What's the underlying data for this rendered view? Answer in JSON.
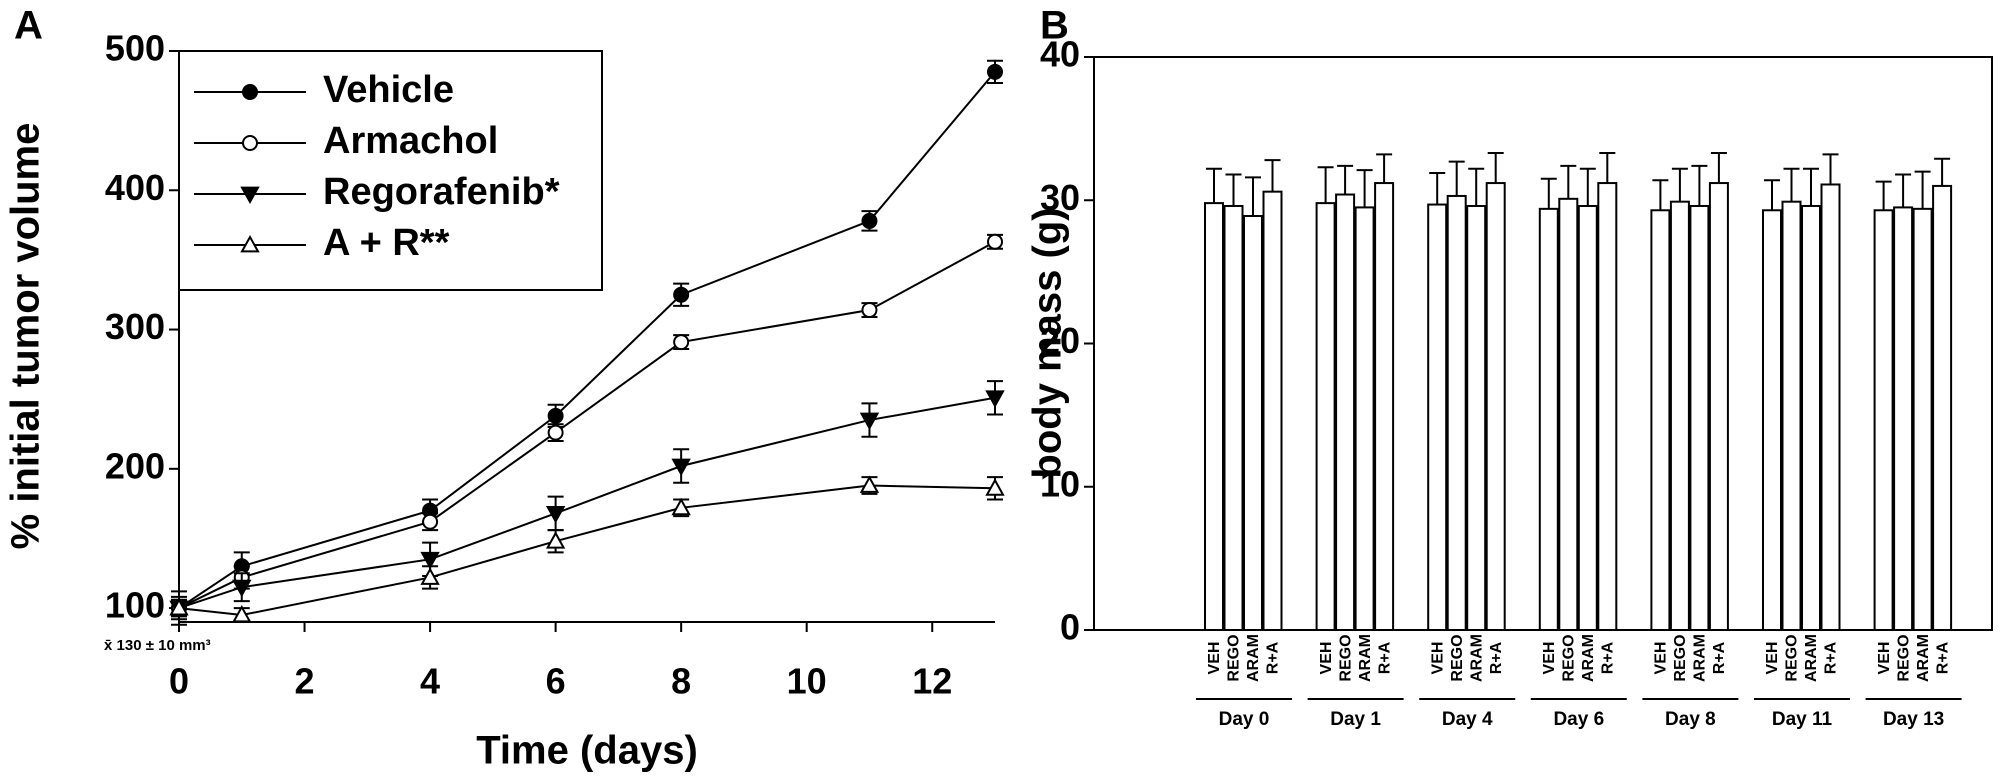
{
  "chart_data": [
    {
      "type": "line",
      "panel": "A",
      "xlabel": "Time (days)",
      "ylabel": "% initial tumor volume",
      "annotation": "x̄ 130 ± 10 mm³",
      "x": [
        0,
        1,
        4,
        6,
        8,
        11,
        13
      ],
      "xlim": [
        0,
        13
      ],
      "xticks": [
        0,
        2,
        4,
        6,
        8,
        10,
        12
      ],
      "ylim": [
        90,
        500
      ],
      "yticks": [
        100,
        200,
        300,
        400,
        500
      ],
      "series": [
        {
          "name": "Vehicle",
          "color": "#000000",
          "marker": "circle-filled",
          "values": [
            100,
            130,
            170,
            238,
            325,
            378,
            485
          ],
          "errors": [
            6,
            10,
            8,
            8,
            8,
            7,
            8
          ]
        },
        {
          "name": "Armachol",
          "color": "#000000",
          "marker": "circle-open",
          "values": [
            100,
            122,
            162,
            226,
            291,
            314,
            363
          ],
          "errors": [
            5,
            8,
            6,
            6,
            5,
            5,
            5
          ]
        },
        {
          "name": "Regorafenib*",
          "color": "#000000",
          "marker": "triangle-down-filled",
          "values": [
            100,
            115,
            135,
            168,
            202,
            235,
            251
          ],
          "errors": [
            8,
            10,
            12,
            12,
            12,
            12,
            12
          ]
        },
        {
          "name": "A + R**",
          "color": "#000000",
          "marker": "triangle-up-open",
          "values": [
            100,
            95,
            122,
            148,
            172,
            188,
            186
          ],
          "errors": [
            12,
            5,
            8,
            8,
            6,
            6,
            8
          ]
        }
      ]
    },
    {
      "type": "bar",
      "panel": "B",
      "ylabel": "body mass (g)",
      "categories": [
        "Day 0",
        "Day 1",
        "Day 4",
        "Day 6",
        "Day 8",
        "Day 11",
        "Day 13"
      ],
      "ylim": [
        0,
        40
      ],
      "yticks": [
        0,
        10,
        20,
        30,
        40
      ],
      "series": [
        {
          "name": "VEH",
          "color": "#ffffff",
          "values": [
            29.8,
            29.8,
            29.7,
            29.4,
            29.3,
            29.3,
            29.3
          ],
          "errors": [
            2.4,
            2.5,
            2.2,
            2.1,
            2.1,
            2.1,
            2.0
          ]
        },
        {
          "name": "REGO",
          "color": "#ffffff",
          "values": [
            29.6,
            30.4,
            30.3,
            30.1,
            29.9,
            29.9,
            29.5
          ],
          "errors": [
            2.2,
            2.0,
            2.4,
            2.3,
            2.3,
            2.3,
            2.3
          ]
        },
        {
          "name": "ARAM",
          "color": "#ffffff",
          "values": [
            28.9,
            29.5,
            29.6,
            29.6,
            29.6,
            29.6,
            29.4
          ],
          "errors": [
            2.7,
            2.6,
            2.6,
            2.6,
            2.8,
            2.6,
            2.6
          ]
        },
        {
          "name": "R+A",
          "color": "#ffffff",
          "values": [
            30.6,
            31.2,
            31.2,
            31.2,
            31.2,
            31.1,
            31.0
          ],
          "errors": [
            2.2,
            2.0,
            2.1,
            2.1,
            2.1,
            2.1,
            1.9
          ]
        }
      ]
    }
  ]
}
